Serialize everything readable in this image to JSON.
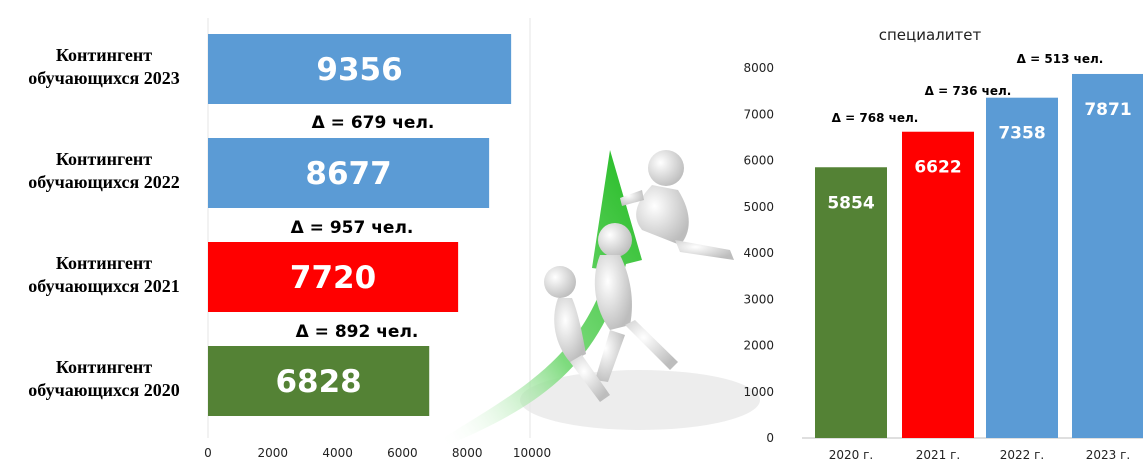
{
  "colors": {
    "green": "#548235",
    "red": "#ff0000",
    "blue": "#5b9bd5",
    "arrow_green": "#33cc33"
  },
  "chart_data": [
    {
      "type": "bar",
      "orientation": "horizontal",
      "categories": [
        "Контингент обучающихся 2023",
        "Контингент обучающихся 2022",
        "Контингент обучающихся 2021",
        "Контингент обучающихся 2020"
      ],
      "category_lines": [
        [
          "Контингент",
          "обучающихся 2023"
        ],
        [
          "Контингент",
          "обучающихся 2022"
        ],
        [
          "Контингент",
          "обучающихся 2021"
        ],
        [
          "Контингент",
          "обучающихся 2020"
        ]
      ],
      "values": [
        9356,
        8677,
        7720,
        6828
      ],
      "bar_colors": [
        "#5b9bd5",
        "#5b9bd5",
        "#ff0000",
        "#548235"
      ],
      "xlim": [
        0,
        10000
      ],
      "x_ticks": [
        "0",
        "2000",
        "4000",
        "6000",
        "8000",
        "10000"
      ],
      "annotations": [
        "Δ = 679 чел.",
        "Δ = 957 чел.",
        "Δ = 892 чел."
      ],
      "grid": false,
      "title": "",
      "xlabel": "",
      "ylabel": ""
    },
    {
      "type": "bar",
      "title": "специалитет",
      "categories": [
        "2020 г.",
        "2021 г.",
        "2022 г.",
        "2023 г."
      ],
      "values": [
        5854,
        6622,
        7358,
        7871
      ],
      "bar_colors": [
        "#548235",
        "#ff0000",
        "#5b9bd5",
        "#5b9bd5"
      ],
      "ylim": [
        0,
        8000
      ],
      "y_ticks": [
        "0",
        "1000",
        "2000",
        "3000",
        "4000",
        "5000",
        "6000",
        "7000",
        "8000"
      ],
      "annotations": [
        "Δ = 768 чел.",
        "Δ = 736 чел.",
        "Δ = 513 чел."
      ],
      "grid": false,
      "xlabel": "",
      "ylabel": ""
    }
  ]
}
